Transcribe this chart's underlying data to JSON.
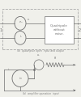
{
  "bg_color": "#f0f0eb",
  "line_color": "#aaaaaa",
  "dark_color": "#707070",
  "text_color": "#808080",
  "label_a": "(a)  quadripole open  input and output",
  "label_b": "(b)  amplifier operation  input",
  "box_text": "Quadripole\nwithout\nnoise.",
  "fig_width": 1.0,
  "fig_height": 1.2,
  "dpi": 100
}
